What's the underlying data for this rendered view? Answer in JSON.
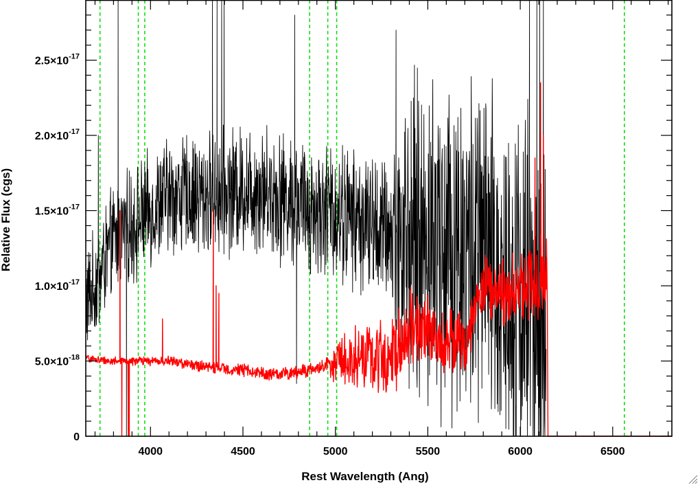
{
  "chart_data": {
    "type": "line",
    "title": "",
    "xlabel": "Rest Wavelength (Ang)",
    "ylabel": "Relative Flux (cgs)",
    "xlim": [
      3650,
      6820
    ],
    "ylim": [
      0,
      2.9e-17
    ],
    "x_ticks": [
      {
        "value": 4000,
        "label": "4000"
      },
      {
        "value": 4500,
        "label": "4500"
      },
      {
        "value": 5000,
        "label": "5000"
      },
      {
        "value": 5500,
        "label": "5500"
      },
      {
        "value": 6000,
        "label": "6000"
      },
      {
        "value": 6500,
        "label": "6500"
      }
    ],
    "y_ticks": [
      {
        "value": 0,
        "mantissa": "0",
        "times": "",
        "exponent": ""
      },
      {
        "value": 5e-18,
        "mantissa": "5.0",
        "times": "×10",
        "exponent": "-18"
      },
      {
        "value": 1e-17,
        "mantissa": "1.0",
        "times": "×10",
        "exponent": "-17"
      },
      {
        "value": 1.5e-17,
        "mantissa": "1.5",
        "times": "×10",
        "exponent": "-17"
      },
      {
        "value": 2e-17,
        "mantissa": "2.0",
        "times": "×10",
        "exponent": "-17"
      },
      {
        "value": 2.5e-17,
        "mantissa": "2.5",
        "times": "×10",
        "exponent": "-17"
      }
    ],
    "grid": false,
    "vertical_markers": {
      "color": "#00dd00",
      "style": "dashed",
      "x": [
        3727,
        3934,
        3969,
        4861,
        4959,
        5007,
        6563
      ]
    },
    "series": [
      {
        "color": "#000000",
        "x_range": [
          3650,
          6140
        ],
        "anchors": {
          "x": [
            3650,
            3700,
            3800,
            3900,
            4000,
            4100,
            4200,
            4300,
            4400,
            4500,
            4600,
            4700,
            4800,
            4900,
            5000,
            5100,
            5200,
            5300,
            5400,
            5500,
            5600,
            5700,
            5800,
            5900,
            6000,
            6100,
            6140
          ],
          "y": [
            9e-18,
            1e-17,
            1.3e-17,
            1.4e-17,
            1.5e-17,
            1.6e-17,
            1.6e-17,
            1.6e-17,
            1.62e-17,
            1.65e-17,
            1.65e-17,
            1.6e-17,
            1.55e-17,
            1.5e-17,
            1.5e-17,
            1.45e-17,
            1.4e-17,
            1.35e-17,
            1.3e-17,
            1.3e-17,
            1.3e-17,
            1.25e-17,
            1.2e-17,
            1e-17,
            1e-17,
            8e-18,
            5e-18
          ]
        },
        "noise_amplitude": [
          {
            "x": 3650,
            "amp": 3e-18
          },
          {
            "x": 5300,
            "amp": 4e-18
          },
          {
            "x": 5400,
            "amp": 9e-18
          },
          {
            "x": 6140,
            "amp": 1.1e-17
          }
        ],
        "spikes": [
          {
            "x": 3718,
            "y": 2e-17
          },
          {
            "x": 3825,
            "y": 2.9e-17
          },
          {
            "x": 3840,
            "y": 1.5e-17
          },
          {
            "x": 3870,
            "y": 0
          },
          {
            "x": 4335,
            "y": 2.9e-17
          },
          {
            "x": 4360,
            "y": 2.9e-17
          },
          {
            "x": 4385,
            "y": 2.9e-17
          },
          {
            "x": 4398,
            "y": 2.9e-17
          },
          {
            "x": 4780,
            "y": 2.8e-17
          },
          {
            "x": 4790,
            "y": 3.5e-18
          },
          {
            "x": 5328,
            "y": 2.7e-17
          },
          {
            "x": 6050,
            "y": 2.9e-17
          },
          {
            "x": 6075,
            "y": 0
          },
          {
            "x": 6090,
            "y": 2.9e-17
          },
          {
            "x": 6105,
            "y": 2.9e-17
          },
          {
            "x": 6125,
            "y": 2.9e-17
          }
        ]
      },
      {
        "color": "#ff0000",
        "x_range": [
          3650,
          6820
        ],
        "anchors": {
          "x": [
            3650,
            3700,
            3800,
            3900,
            4000,
            4100,
            4200,
            4300,
            4400,
            4500,
            4600,
            4650,
            4700,
            4800,
            4900,
            5000,
            5100,
            5200,
            5300,
            5400,
            5500,
            5600,
            5700,
            5800,
            5900,
            6000,
            6100,
            6145,
            6150,
            6820
          ],
          "y": [
            5.2e-18,
            5.1e-18,
            5e-18,
            5e-18,
            5e-18,
            5e-18,
            4.8e-18,
            4.6e-18,
            4.5e-18,
            4.4e-18,
            4.2e-18,
            4.1e-18,
            4.1e-18,
            4.3e-18,
            4.5e-18,
            5e-18,
            5.3e-18,
            5.2e-18,
            5.4e-18,
            7e-18,
            7e-18,
            6.5e-18,
            6.2e-18,
            1e-17,
            9.5e-18,
            1e-17,
            1.05e-17,
            1.1e-17,
            0,
            0
          ]
        },
        "noise_amplitude": [
          {
            "x": 3650,
            "amp": 2e-19
          },
          {
            "x": 4950,
            "amp": 4e-19
          },
          {
            "x": 5000,
            "amp": 1.2e-18
          },
          {
            "x": 5350,
            "amp": 2.5e-18
          },
          {
            "x": 5750,
            "amp": 1.5e-18
          },
          {
            "x": 6140,
            "amp": 2.5e-18
          },
          {
            "x": 6148,
            "amp": 0
          },
          {
            "x": 6820,
            "amp": 0
          }
        ],
        "spikes": [
          {
            "x": 3835,
            "y": 1.5e-17
          },
          {
            "x": 3845,
            "y": 0
          },
          {
            "x": 3880,
            "y": 0
          },
          {
            "x": 3885,
            "y": 0
          },
          {
            "x": 4065,
            "y": 7.8e-18
          },
          {
            "x": 4340,
            "y": 1.5e-17
          },
          {
            "x": 4355,
            "y": 1e-17
          },
          {
            "x": 4370,
            "y": 9.5e-18
          },
          {
            "x": 6080,
            "y": 1.85e-17
          },
          {
            "x": 6110,
            "y": 2.35e-17
          },
          {
            "x": 6125,
            "y": 2e-17
          }
        ]
      }
    ]
  }
}
